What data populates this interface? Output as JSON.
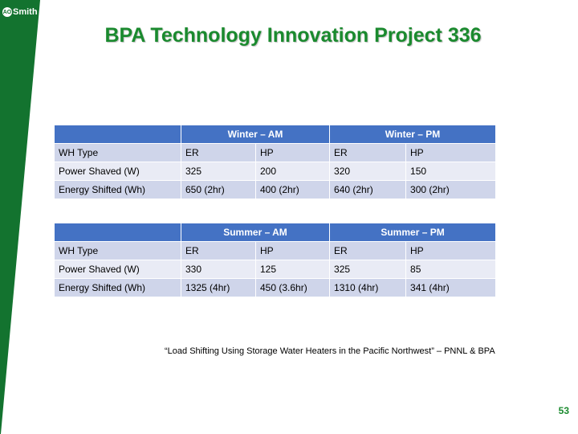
{
  "logo_text": "Smith",
  "logo_mark": "AO",
  "title": "BPA Technology Innovation Project 336",
  "tables": [
    {
      "headers": [
        "",
        "Winter – AM",
        "Winter – PM"
      ],
      "rows": [
        [
          "WH Type",
          "ER",
          "HP",
          "ER",
          "HP"
        ],
        [
          "Power Shaved (W)",
          "325",
          "200",
          "320",
          "150"
        ],
        [
          "Energy Shifted (Wh)",
          "650 (2hr)",
          "400 (2hr)",
          "640 (2hr)",
          "300 (2hr)"
        ]
      ]
    },
    {
      "headers": [
        "",
        "Summer – AM",
        "Summer – PM"
      ],
      "rows": [
        [
          "WH Type",
          "ER",
          "HP",
          "ER",
          "HP"
        ],
        [
          "Power Shaved (W)",
          "330",
          "125",
          "325",
          "85"
        ],
        [
          "Energy Shifted (Wh)",
          "1325 (4hr)",
          "450 (3.6hr)",
          "1310 (4hr)",
          "341 (4hr)"
        ]
      ]
    }
  ],
  "citation": "“Load Shifting Using Storage Water Heaters in the Pacific Northwest” – PNNL & BPA",
  "page_number": "53",
  "colors": {
    "brand_green": "#13732f",
    "header_blue": "#4472c4"
  }
}
